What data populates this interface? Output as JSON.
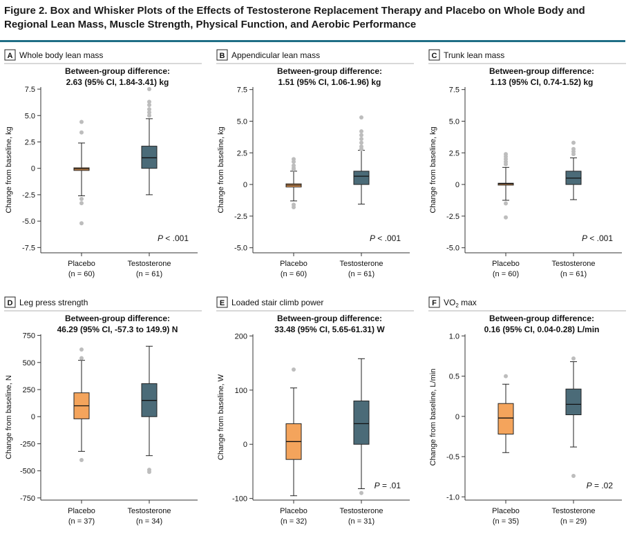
{
  "figure_title": "Figure 2. Box and Whisker Plots of the Effects of Testosterone Replacement Therapy and Placebo on Whole Body and Regional Lean Mass, Muscle Strength, Physical Function, and Aerobic Performance",
  "colors": {
    "placebo": "#f4a45c",
    "testosterone": "#4b6b78",
    "outlier": "#bdbdbd",
    "rule": "#1f6e86",
    "axis": "#333333"
  },
  "chart_data": [
    {
      "panel": "A",
      "title": "Whole body lean mass",
      "type": "box",
      "subtitle": [
        "Between-group difference:",
        "2.63 (95% CI, 1.84-3.41) kg"
      ],
      "ylabel": "Change from baseline, kg",
      "ylim": [
        -8.0,
        7.7
      ],
      "yticks": [
        -7.5,
        -5.0,
        -2.5,
        0,
        2.5,
        5.0,
        7.5
      ],
      "ytick_labels": [
        "-7.5",
        "-5.0",
        "-2.5",
        "0",
        "2.5",
        "5.0",
        "7.5"
      ],
      "p_value": "P < .001",
      "groups": [
        {
          "name": "Placebo",
          "n_label": "(n = 60)",
          "whisker_low": -2.6,
          "q1": -0.2,
          "median": -0.05,
          "q3": 0.05,
          "whisker_high": 2.4,
          "outliers": [
            4.4,
            3.4,
            -2.9,
            -3.3,
            -5.2
          ]
        },
        {
          "name": "Testosterone",
          "n_label": "(n = 61)",
          "whisker_low": -2.5,
          "q1": 0,
          "median": 1.0,
          "q3": 2.1,
          "whisker_high": 4.7,
          "outliers": [
            7.5,
            6.3,
            6.0,
            5.6,
            5.3,
            5.0
          ]
        }
      ]
    },
    {
      "panel": "B",
      "title": "Appendicular lean mass",
      "type": "box",
      "subtitle": [
        "Between-group difference:",
        "1.51 (95% CI, 1.06-1.96) kg"
      ],
      "ylabel": "Change from baseline, kg",
      "ylim": [
        -5.4,
        7.7
      ],
      "yticks": [
        -5.0,
        -2.5,
        0,
        2.5,
        5.0,
        7.5
      ],
      "ytick_labels": [
        "-5.0",
        "-2.5",
        "0",
        "2.5",
        "5.0",
        "7.5"
      ],
      "p_value": "P < .001",
      "groups": [
        {
          "name": "Placebo",
          "n_label": "(n = 60)",
          "whisker_low": -1.3,
          "q1": -0.2,
          "median": -0.05,
          "q3": 0.05,
          "whisker_high": 1.05,
          "outliers": [
            2.0,
            1.8,
            1.5,
            1.3,
            1.2,
            -1.6,
            -1.8
          ]
        },
        {
          "name": "Testosterone",
          "n_label": "(n = 61)",
          "whisker_low": -1.55,
          "q1": 0,
          "median": 0.65,
          "q3": 1.05,
          "whisker_high": 2.7,
          "outliers": [
            5.3,
            4.2,
            3.9,
            3.6,
            3.3,
            3.0,
            2.8
          ]
        }
      ]
    },
    {
      "panel": "C",
      "title": "Trunk lean mass",
      "type": "box",
      "subtitle": [
        "Between-group difference:",
        "1.13 (95% CI, 0.74-1.52) kg"
      ],
      "ylabel": "Change from baseline, kg",
      "ylim": [
        -5.4,
        7.7
      ],
      "yticks": [
        -5.0,
        -2.5,
        0,
        2.5,
        5.0,
        7.5
      ],
      "ytick_labels": [
        "-5.0",
        "-2.5",
        "0",
        "2.5",
        "5.0",
        "7.5"
      ],
      "p_value": "P < .001",
      "groups": [
        {
          "name": "Placebo",
          "n_label": "(n = 60)",
          "whisker_low": -1.25,
          "q1": -0.05,
          "median": 0.05,
          "q3": 0.1,
          "whisker_high": 1.35,
          "outliers": [
            2.4,
            2.2,
            2.0,
            1.8,
            1.6,
            -1.5,
            -2.6
          ]
        },
        {
          "name": "Testosterone",
          "n_label": "(n = 61)",
          "whisker_low": -1.2,
          "q1": 0,
          "median": 0.5,
          "q3": 1.05,
          "whisker_high": 2.1,
          "outliers": [
            3.3,
            2.8,
            2.6,
            2.4
          ]
        }
      ]
    },
    {
      "panel": "D",
      "title": "Leg press strength",
      "type": "box",
      "subtitle": [
        "Between-group difference:",
        "46.29 (95% CI, -57.3 to 149.9) N"
      ],
      "ylabel": "Change from baseline, N",
      "ylim": [
        -770,
        760
      ],
      "yticks": [
        -750,
        -500,
        -250,
        0,
        250,
        500,
        750
      ],
      "ytick_labels": [
        "-750",
        "-500",
        "-250",
        "0",
        "250",
        "500",
        "750"
      ],
      "p_value": "",
      "groups": [
        {
          "name": "Placebo",
          "n_label": "(n = 37)",
          "whisker_low": -320,
          "q1": -20,
          "median": 100,
          "q3": 220,
          "whisker_high": 520,
          "outliers": [
            620,
            540,
            -400
          ]
        },
        {
          "name": "Testosterone",
          "n_label": "(n = 34)",
          "whisker_low": -360,
          "q1": 0,
          "median": 150,
          "q3": 305,
          "whisker_high": 650,
          "outliers": [
            -490,
            -510
          ]
        }
      ]
    },
    {
      "panel": "E",
      "title": "Loaded stair climb power",
      "type": "box",
      "subtitle": [
        "Between-group difference:",
        "33.48 (95% CI, 5.65-61.31) W"
      ],
      "ylabel": "Change from baseline, W",
      "ylim": [
        -103,
        203
      ],
      "yticks": [
        -100,
        0,
        100,
        200
      ],
      "ytick_labels": [
        "-100",
        "0",
        "100",
        "200"
      ],
      "p_value": "P = .01",
      "groups": [
        {
          "name": "Placebo",
          "n_label": "(n = 32)",
          "whisker_low": -95,
          "q1": -28,
          "median": 5,
          "q3": 38,
          "whisker_high": 104,
          "outliers": [
            138
          ]
        },
        {
          "name": "Testosterone",
          "n_label": "(n = 31)",
          "whisker_low": -82,
          "q1": 0,
          "median": 38,
          "q3": 80,
          "whisker_high": 158,
          "outliers": [
            -90
          ]
        }
      ]
    },
    {
      "panel": "F",
      "title": "VO",
      "title_sub": "2",
      "title_tail": " max",
      "type": "box",
      "subtitle": [
        "Between-group difference:",
        "0.16 (95% CI, 0.04-0.28) L/min"
      ],
      "ylabel": "Change from baseline, L/min",
      "ylim": [
        -1.04,
        1.02
      ],
      "yticks": [
        -1.0,
        -0.5,
        0,
        0.5,
        1.0
      ],
      "ytick_labels": [
        "-1.0",
        "-0.5",
        "0",
        "0.5",
        "1.0"
      ],
      "p_value": "P = .02",
      "groups": [
        {
          "name": "Placebo",
          "n_label": "(n = 35)",
          "whisker_low": -0.45,
          "q1": -0.22,
          "median": -0.02,
          "q3": 0.16,
          "whisker_high": 0.4,
          "outliers": [
            0.5
          ]
        },
        {
          "name": "Testosterone",
          "n_label": "(n = 29)",
          "whisker_low": -0.38,
          "q1": 0.02,
          "median": 0.15,
          "q3": 0.34,
          "whisker_high": 0.68,
          "outliers": [
            0.72,
            -0.74
          ]
        }
      ]
    }
  ]
}
